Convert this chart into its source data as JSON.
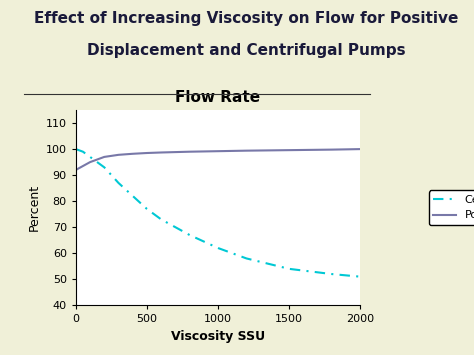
{
  "title_line1": "Effect of Increasing Viscosity on Flow for Positive",
  "title_line2": "Displacement and Centrifugal Pumps",
  "chart_title": "Flow Rate",
  "xlabel": "Viscosity SSU",
  "ylabel": "Percent",
  "bg_color": "#f0f0d8",
  "plot_bg_color": "#ffffff",
  "left_bar_color": "#c8c8a0",
  "xlim": [
    0,
    2000
  ],
  "ylim": [
    40,
    115
  ],
  "yticks": [
    40,
    50,
    60,
    70,
    80,
    90,
    100,
    110
  ],
  "xticks": [
    0,
    500,
    1000,
    1500,
    2000
  ],
  "centrifugal_x": [
    0,
    50,
    100,
    200,
    300,
    400,
    500,
    600,
    700,
    800,
    1000,
    1200,
    1500,
    1800,
    2000
  ],
  "centrifugal_y": [
    100,
    99,
    97,
    93,
    87,
    82,
    77,
    73,
    70,
    67,
    62,
    58,
    54,
    52,
    51
  ],
  "positive_x": [
    0,
    100,
    200,
    300,
    400,
    500,
    600,
    800,
    1000,
    1200,
    1500,
    1800,
    2000
  ],
  "positive_y": [
    92,
    95,
    97,
    97.8,
    98.2,
    98.5,
    98.7,
    99.0,
    99.2,
    99.4,
    99.6,
    99.8,
    100
  ],
  "centrifugal_color": "#00c8d4",
  "positive_color": "#7878a8",
  "legend_centrifugal": "Centrifugal",
  "legend_positive": "Positive",
  "title_fontsize": 11,
  "chart_title_fontsize": 11,
  "axis_label_fontsize": 9,
  "tick_fontsize": 8,
  "legend_fontsize": 8,
  "separator_color": "#888899",
  "title_color": "#1a1a3a"
}
